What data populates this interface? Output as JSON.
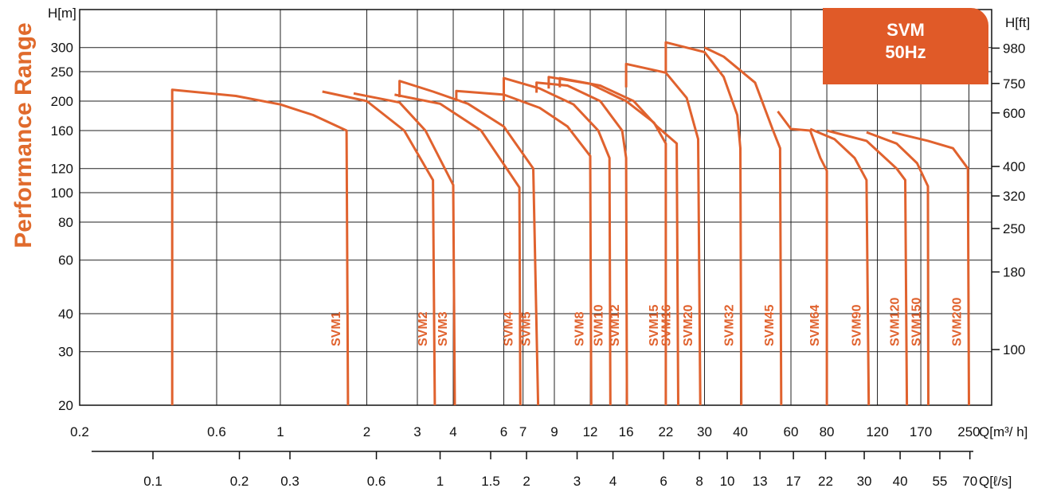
{
  "side_title": "Performance Range",
  "badge": {
    "line1": "SVM",
    "line2": "50Hz"
  },
  "chart_data": {
    "type": "line",
    "title": "",
    "x_scale": "log",
    "y_scale": "log",
    "xlabel": "Q[m³/ h]",
    "ylabel": "H[m]",
    "ylabel_right": "H[ft]",
    "x2label": "Q[ℓ/s]",
    "xlim": [
      0.2,
      300
    ],
    "ylim": [
      20,
      400
    ],
    "grid": true,
    "x_ticks": [
      "0.2",
      "0.6",
      "1",
      "2",
      "3",
      "4",
      "6",
      "7",
      "9",
      "12",
      "16",
      "22",
      "30",
      "40",
      "60",
      "80",
      "120",
      "170",
      "250"
    ],
    "x2_ticks": [
      "0.1",
      "0.2",
      "0.3",
      "0.6",
      "1",
      "1.5",
      "2",
      "3",
      "4",
      "6",
      "8",
      "10",
      "13",
      "17",
      "22",
      "30",
      "40",
      "55",
      "70"
    ],
    "y_ticks": [
      "20",
      "30",
      "40",
      "60",
      "80",
      "100",
      "120",
      "160",
      "200",
      "250",
      "300"
    ],
    "y_right_ticks": [
      "100",
      "180",
      "250",
      "320",
      "400",
      "600",
      "750",
      "980"
    ],
    "series_color": "#e0622e",
    "badge_color": "#e05a28",
    "series": [
      {
        "name": "SVM1",
        "points": [
          [
            0.42,
            20
          ],
          [
            0.42,
            218
          ],
          [
            0.7,
            208
          ],
          [
            1.0,
            195
          ],
          [
            1.3,
            180
          ],
          [
            1.7,
            160
          ],
          [
            1.72,
            20
          ]
        ]
      },
      {
        "name": "SVM2",
        "points": [
          [
            1.4,
            215
          ],
          [
            2.0,
            200
          ],
          [
            2.7,
            160
          ],
          [
            3.4,
            110
          ],
          [
            3.45,
            20
          ]
        ]
      },
      {
        "name": "SVM3",
        "points": [
          [
            1.8,
            212
          ],
          [
            2.6,
            198
          ],
          [
            3.2,
            160
          ],
          [
            4.0,
            106
          ],
          [
            4.05,
            20
          ]
        ]
      },
      {
        "name": "SVM4",
        "points": [
          [
            2.5,
            210
          ],
          [
            3.6,
            196
          ],
          [
            5.0,
            160
          ],
          [
            6.8,
            104
          ],
          [
            6.85,
            20
          ]
        ]
      },
      {
        "name": "SVM5",
        "points": [
          [
            2.6,
            206
          ],
          [
            2.6,
            233
          ],
          [
            3.4,
            215
          ],
          [
            4.5,
            196
          ],
          [
            6.0,
            165
          ],
          [
            7.6,
            120
          ],
          [
            7.9,
            20
          ]
        ]
      },
      {
        "name": "SVM8",
        "points": [
          [
            4.1,
            200
          ],
          [
            4.1,
            216
          ],
          [
            6.0,
            210
          ],
          [
            8.0,
            190
          ],
          [
            10.0,
            165
          ],
          [
            12.0,
            132
          ],
          [
            12.1,
            20
          ]
        ]
      },
      {
        "name": "SVM10",
        "points": [
          [
            6.0,
            200
          ],
          [
            6.0,
            238
          ],
          [
            8.0,
            220
          ],
          [
            10.5,
            195
          ],
          [
            12.8,
            160
          ],
          [
            14.0,
            130
          ],
          [
            14.1,
            20
          ]
        ]
      },
      {
        "name": "SVM12",
        "points": [
          [
            7.8,
            213
          ],
          [
            7.8,
            230
          ],
          [
            10.0,
            225
          ],
          [
            13.0,
            200
          ],
          [
            15.5,
            160
          ],
          [
            16.0,
            130
          ],
          [
            16.1,
            20
          ]
        ]
      },
      {
        "name": "SVM15",
        "points": [
          [
            8.6,
            220
          ],
          [
            8.6,
            240
          ],
          [
            12.0,
            228
          ],
          [
            16.0,
            200
          ],
          [
            20.0,
            170
          ],
          [
            22.0,
            145
          ],
          [
            22.0,
            20
          ]
        ]
      },
      {
        "name": "SVM16",
        "points": [
          [
            9.4,
            222
          ],
          [
            9.4,
            238
          ],
          [
            13.0,
            225
          ],
          [
            17.0,
            200
          ],
          [
            20.5,
            165
          ],
          [
            24.0,
            145
          ],
          [
            24.3,
            20
          ]
        ]
      },
      {
        "name": "SVM20",
        "points": [
          [
            16.0,
            222
          ],
          [
            16.0,
            265
          ],
          [
            22.0,
            248
          ],
          [
            26.0,
            205
          ],
          [
            28.5,
            150
          ],
          [
            29.0,
            20
          ]
        ]
      },
      {
        "name": "SVM32",
        "points": [
          [
            22.0,
            248
          ],
          [
            22.0,
            312
          ],
          [
            30.0,
            290
          ],
          [
            35.0,
            240
          ],
          [
            39.0,
            180
          ],
          [
            40.0,
            140
          ],
          [
            40.3,
            20
          ]
        ]
      },
      {
        "name": "SVM45",
        "points": [
          [
            30.0,
            300
          ],
          [
            35.0,
            280
          ],
          [
            45.0,
            230
          ],
          [
            52.0,
            160
          ],
          [
            55.0,
            140
          ],
          [
            55.5,
            20
          ]
        ]
      },
      {
        "name": "SVM64",
        "points": [
          [
            54.0,
            185
          ],
          [
            60.0,
            162
          ],
          [
            70.0,
            160
          ],
          [
            76.0,
            130
          ],
          [
            80.0,
            118
          ],
          [
            80.0,
            20
          ]
        ]
      },
      {
        "name": "SVM90",
        "points": [
          [
            70.0,
            162
          ],
          [
            85.0,
            150
          ],
          [
            100.0,
            130
          ],
          [
            110.0,
            110
          ],
          [
            112.0,
            20
          ]
        ]
      },
      {
        "name": "SVM120",
        "points": [
          [
            80.0,
            160
          ],
          [
            110.0,
            148
          ],
          [
            140.0,
            120
          ],
          [
            150.0,
            110
          ],
          [
            152.0,
            20
          ]
        ]
      },
      {
        "name": "SVM150",
        "points": [
          [
            110.0,
            158
          ],
          [
            140.0,
            145
          ],
          [
            165.0,
            125
          ],
          [
            180.0,
            105
          ],
          [
            180.5,
            20
          ]
        ]
      },
      {
        "name": "SVM200",
        "points": [
          [
            135.0,
            158
          ],
          [
            180.0,
            148
          ],
          [
            220.0,
            140
          ],
          [
            248.0,
            120
          ],
          [
            250.0,
            20
          ]
        ]
      }
    ]
  }
}
